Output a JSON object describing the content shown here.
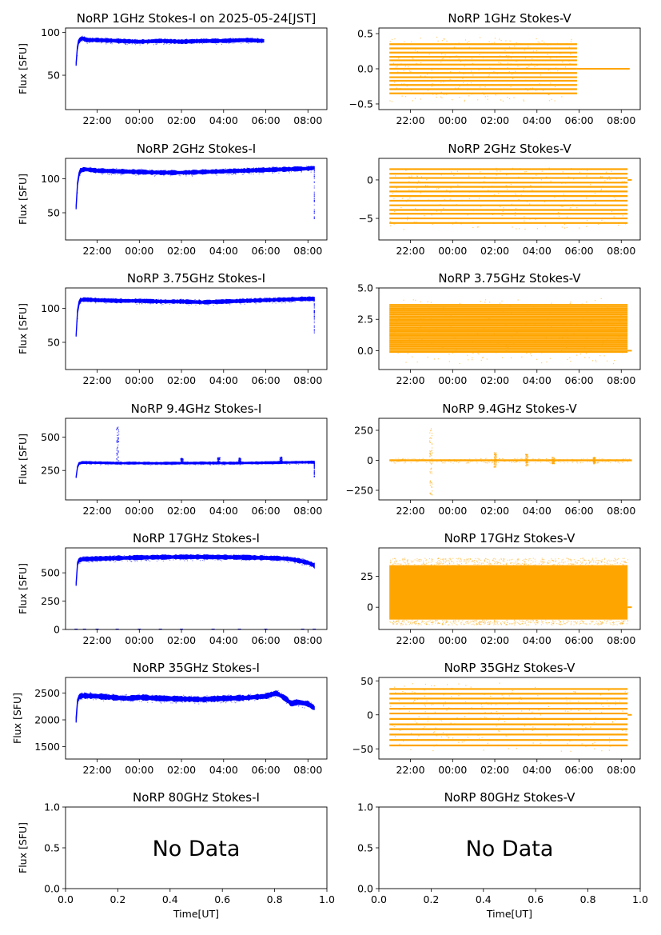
{
  "chart_data": [
    {
      "type": "scatter",
      "title": "NoRP 1GHz Stokes-I on 2025-05-24[JST]",
      "ylabel": "Flux [SFU]",
      "ylim": [
        10,
        105
      ],
      "yticks": [
        50,
        100
      ],
      "xticks": [
        "22:00",
        "00:00",
        "02:00",
        "04:00",
        "06:00",
        "08:00"
      ],
      "xlim": [
        20.5,
        32.9
      ],
      "color": "#0000ff",
      "series": [
        {
          "x": [
            21.0,
            21.05,
            21.1,
            21.2,
            21.3,
            21.5,
            22,
            23,
            24,
            25,
            26,
            27,
            28,
            29,
            29.9
          ],
          "y": [
            63,
            80,
            88,
            92,
            93,
            91,
            91,
            90,
            89,
            90,
            89,
            90,
            90,
            91,
            90
          ]
        }
      ],
      "band_halfwidth": 1.8
    },
    {
      "type": "scatter",
      "title": "NoRP 1GHz Stokes-V",
      "ylabel": "",
      "ylim": [
        -0.58,
        0.58
      ],
      "yticks": [
        -0.5,
        0.0,
        0.5
      ],
      "yticklabels": [
        "−0.5",
        "0.0",
        "0.5"
      ],
      "xticks": [
        "22:00",
        "00:00",
        "02:00",
        "04:00",
        "06:00",
        "08:00"
      ],
      "xlim": [
        20.5,
        32.9
      ],
      "color": "#ffa500",
      "series": [
        {
          "levels": [
            -0.35,
            -0.29,
            -0.23,
            -0.17,
            -0.12,
            -0.06,
            0.0,
            0.06,
            0.12,
            0.17,
            0.23,
            0.29,
            0.35
          ],
          "x_start": 21.0,
          "x_end": 29.9
        }
      ],
      "tail": {
        "x_start": 29.9,
        "x_end": 32.4,
        "y": 0.0
      },
      "outliers_extent": [
        -0.46,
        0.46
      ]
    },
    {
      "type": "scatter",
      "title": "NoRP 2GHz Stokes-I",
      "ylabel": "Flux [SFU]",
      "ylim": [
        10,
        130
      ],
      "yticks": [
        50,
        100
      ],
      "xticks": [
        "22:00",
        "00:00",
        "02:00",
        "04:00",
        "06:00",
        "08:00"
      ],
      "xlim": [
        20.5,
        32.9
      ],
      "color": "#0000ff",
      "series": [
        {
          "x": [
            21.0,
            21.05,
            21.1,
            21.2,
            21.4,
            22,
            23,
            24,
            25,
            26,
            27,
            28,
            29,
            30,
            31,
            32,
            32.3
          ],
          "y": [
            58,
            85,
            103,
            112,
            114,
            112,
            111,
            110,
            109,
            109,
            110,
            111,
            112,
            113,
            114,
            115,
            116
          ]
        }
      ],
      "band_halfwidth": 2.5,
      "dropout": {
        "x": 32.3,
        "y": 42
      }
    },
    {
      "type": "scatter",
      "title": "NoRP 2GHz Stokes-V",
      "ylabel": "",
      "ylim": [
        -7.8,
        2.8
      ],
      "yticks": [
        -5,
        0
      ],
      "yticklabels": [
        "−5",
        "0"
      ],
      "xticks": [
        "22:00",
        "00:00",
        "02:00",
        "04:00",
        "06:00",
        "08:00"
      ],
      "xlim": [
        20.5,
        32.9
      ],
      "color": "#ffa500",
      "series": [
        {
          "levels": [
            -5.6,
            -5.0,
            -4.4,
            -3.9,
            -3.3,
            -2.7,
            -2.1,
            -1.5,
            -0.9,
            -0.35,
            0.25,
            0.8,
            1.4
          ],
          "x_start": 21.0,
          "x_end": 32.3
        }
      ],
      "tail": {
        "x_start": 32.3,
        "x_end": 32.5,
        "y": 0.0
      },
      "outliers_extent": [
        -6.4,
        1.6
      ]
    },
    {
      "type": "scatter",
      "title": "NoRP 3.75GHz Stokes-I",
      "ylabel": "Flux [SFU]",
      "ylim": [
        10,
        130
      ],
      "yticks": [
        50,
        100
      ],
      "xticks": [
        "22:00",
        "00:00",
        "02:00",
        "04:00",
        "06:00",
        "08:00"
      ],
      "xlim": [
        20.5,
        32.9
      ],
      "color": "#0000ff",
      "series": [
        {
          "x": [
            21.0,
            21.05,
            21.1,
            21.2,
            21.4,
            22,
            23,
            24,
            25,
            26,
            27,
            28,
            29,
            30,
            31,
            32,
            32.3
          ],
          "y": [
            60,
            88,
            105,
            112,
            113,
            112,
            111,
            111,
            110,
            110,
            109,
            110,
            111,
            112,
            113,
            114,
            114
          ]
        }
      ],
      "band_halfwidth": 2.2,
      "dropout": {
        "x": 32.3,
        "y": 62
      }
    },
    {
      "type": "scatter",
      "title": "NoRP 3.75GHz Stokes-V",
      "ylabel": "",
      "ylim": [
        -1.5,
        5.0
      ],
      "yticks": [
        0.0,
        2.5,
        5.0
      ],
      "yticklabels": [
        "0.0",
        "2.5",
        "5.0"
      ],
      "xticks": [
        "22:00",
        "00:00",
        "02:00",
        "04:00",
        "06:00",
        "08:00"
      ],
      "xlim": [
        20.5,
        32.9
      ],
      "color": "#ffa500",
      "series": [
        {
          "levels": [
            -0.1,
            0.05,
            0.2,
            0.35,
            0.5,
            0.65,
            0.8,
            0.95,
            1.1,
            1.25,
            1.4,
            1.55,
            1.7,
            1.85,
            2.0,
            2.15,
            2.3,
            2.45,
            2.6,
            2.75,
            2.9,
            3.05,
            3.2,
            3.35,
            3.5,
            3.65
          ],
          "x_start": 21.0,
          "x_end": 32.3
        }
      ],
      "tail": {
        "x_start": 32.3,
        "x_end": 32.5,
        "y": 0.0
      },
      "outliers_extent": [
        -1.0,
        4.2
      ]
    },
    {
      "type": "scatter",
      "title": "NoRP 9.4GHz Stokes-I",
      "ylabel": "Flux [SFU]",
      "ylim": [
        30,
        640
      ],
      "yticks": [
        250,
        500
      ],
      "xticks": [
        "22:00",
        "00:00",
        "02:00",
        "04:00",
        "06:00",
        "08:00"
      ],
      "xlim": [
        20.5,
        32.9
      ],
      "color": "#0000ff",
      "series": [
        {
          "x": [
            21.0,
            21.05,
            21.1,
            21.3,
            22,
            23,
            24,
            25,
            26,
            27,
            28,
            29,
            30,
            31,
            32,
            32.3
          ],
          "y": [
            200,
            260,
            300,
            310,
            308,
            305,
            305,
            304,
            305,
            306,
            305,
            306,
            308,
            310,
            312,
            312
          ]
        }
      ],
      "band_halfwidth": 6,
      "spikes": [
        {
          "x": 22.95,
          "y": 580
        },
        {
          "x": 26.0,
          "y": 345
        },
        {
          "x": 27.75,
          "y": 350
        },
        {
          "x": 28.75,
          "y": 348
        },
        {
          "x": 30.7,
          "y": 355
        }
      ],
      "dropout": {
        "x": 32.3,
        "y": 205
      }
    },
    {
      "type": "scatter",
      "title": "NoRP 9.4GHz Stokes-V",
      "ylabel": "",
      "ylim": [
        -330,
        350
      ],
      "yticks": [
        -250,
        0,
        250
      ],
      "yticklabels": [
        "−250",
        "0",
        "250"
      ],
      "xticks": [
        "22:00",
        "00:00",
        "02:00",
        "04:00",
        "06:00",
        "08:00"
      ],
      "xlim": [
        20.5,
        32.9
      ],
      "color": "#ffa500",
      "series": [
        {
          "x_start": 21.0,
          "x_end": 32.5,
          "y": 0
        }
      ],
      "band_halfwidth": 8,
      "spikes": [
        {
          "x": 22.95,
          "y": 290,
          "ymin": -290
        },
        {
          "x": 26.0,
          "y": 70,
          "ymin": -55
        },
        {
          "x": 27.5,
          "y": 55,
          "ymin": -45
        },
        {
          "x": 28.75,
          "y": 30,
          "ymin": -25
        },
        {
          "x": 30.7,
          "y": 30,
          "ymin": -25
        }
      ]
    },
    {
      "type": "scatter",
      "title": "NoRP 17GHz Stokes-I",
      "ylabel": "Flux [SFU]",
      "ylim": [
        0,
        720
      ],
      "yticks": [
        0,
        250,
        500
      ],
      "xticks": [
        "22:00",
        "00:00",
        "02:00",
        "04:00",
        "06:00",
        "08:00"
      ],
      "xlim": [
        20.5,
        32.9
      ],
      "color": "#0000ff",
      "series": [
        {
          "x": [
            21.0,
            21.05,
            21.1,
            21.3,
            22,
            23,
            24,
            25,
            26,
            27,
            28,
            29,
            30,
            31,
            31.5,
            32,
            32.3
          ],
          "y": [
            400,
            560,
            610,
            620,
            625,
            630,
            635,
            638,
            640,
            640,
            638,
            636,
            632,
            625,
            610,
            590,
            565
          ]
        }
      ],
      "band_halfwidth": 15,
      "zero_marks": [
        21.0,
        21.4,
        22.0,
        22.95,
        24.0,
        25.0,
        26.0,
        27.5,
        28.75,
        30.0,
        31.75,
        32.3
      ]
    },
    {
      "type": "scatter",
      "title": "NoRP 17GHz Stokes-V",
      "ylabel": "",
      "ylim": [
        -18,
        48
      ],
      "yticks": [
        0,
        25
      ],
      "yticklabels": [
        "0",
        "25"
      ],
      "xticks": [
        "22:00",
        "00:00",
        "02:00",
        "04:00",
        "06:00",
        "08:00"
      ],
      "xlim": [
        20.5,
        32.9
      ],
      "color": "#ffa500",
      "series": [
        {
          "x_start": 21.0,
          "x_end": 32.3,
          "ymin": -10,
          "ymax": 34
        }
      ],
      "tail": {
        "x_start": 32.3,
        "x_end": 32.5,
        "y": 0.0
      },
      "outliers_extent": [
        -14,
        40
      ]
    },
    {
      "type": "scatter",
      "title": "NoRP 35GHz Stokes-I",
      "ylabel": "Flux [SFU]",
      "ylim": [
        1270,
        2790
      ],
      "yticks": [
        1500,
        2000,
        2500
      ],
      "xticks": [
        "22:00",
        "00:00",
        "02:00",
        "04:00",
        "06:00",
        "08:00"
      ],
      "xlim": [
        20.5,
        32.9
      ],
      "color": "#0000ff",
      "series": [
        {
          "x": [
            21.0,
            21.05,
            21.1,
            21.3,
            22,
            23,
            23.5,
            24,
            25,
            26,
            27,
            28,
            29,
            30,
            30.5,
            31,
            31.2,
            31.5,
            32,
            32.3
          ],
          "y": [
            2000,
            2300,
            2420,
            2450,
            2440,
            2410,
            2400,
            2420,
            2400,
            2390,
            2380,
            2400,
            2410,
            2440,
            2500,
            2380,
            2300,
            2330,
            2300,
            2220
          ]
        }
      ],
      "band_halfwidth": 40
    },
    {
      "type": "scatter",
      "title": "NoRP 35GHz Stokes-V",
      "ylabel": "",
      "ylim": [
        -65,
        55
      ],
      "yticks": [
        -50,
        0,
        50
      ],
      "yticklabels": [
        "−50",
        "0",
        "50"
      ],
      "xticks": [
        "22:00",
        "00:00",
        "02:00",
        "04:00",
        "06:00",
        "08:00"
      ],
      "xlim": [
        20.5,
        32.9
      ],
      "color": "#ffa500",
      "series": [
        {
          "levels": [
            -45,
            -37,
            -29,
            -21,
            -14,
            -6,
            2,
            9,
            17,
            24,
            31,
            38
          ],
          "x_start": 21.0,
          "x_end": 32.3
        }
      ],
      "tail": {
        "x_start": 32.3,
        "x_end": 32.5,
        "y": 0.0
      },
      "outliers_extent": [
        -53,
        48
      ]
    },
    {
      "type": "scatter",
      "title": "NoRP 80GHz Stokes-I",
      "ylabel": "Flux [SFU]",
      "xlabel": "Time[UT]",
      "ylim": [
        0,
        1
      ],
      "xlim": [
        0,
        1
      ],
      "yticks": [
        0,
        0.5,
        1
      ],
      "yticklabels": [
        "0.0",
        "0.5",
        "1.0"
      ],
      "xticks": [
        "0.0",
        "0.2",
        "0.4",
        "0.6",
        "0.8",
        "1.0"
      ],
      "annotation": "No Data"
    },
    {
      "type": "scatter",
      "title": "NoRP 80GHz Stokes-V",
      "ylabel": "",
      "xlabel": "Time[UT]",
      "ylim": [
        0,
        1
      ],
      "xlim": [
        0,
        1
      ],
      "yticks": [
        0,
        0.5,
        1
      ],
      "yticklabels": [
        "0.0",
        "0.5",
        "1.0"
      ],
      "xticks": [
        "0.0",
        "0.2",
        "0.4",
        "0.6",
        "0.8",
        "1.0"
      ],
      "annotation": "No Data"
    }
  ]
}
